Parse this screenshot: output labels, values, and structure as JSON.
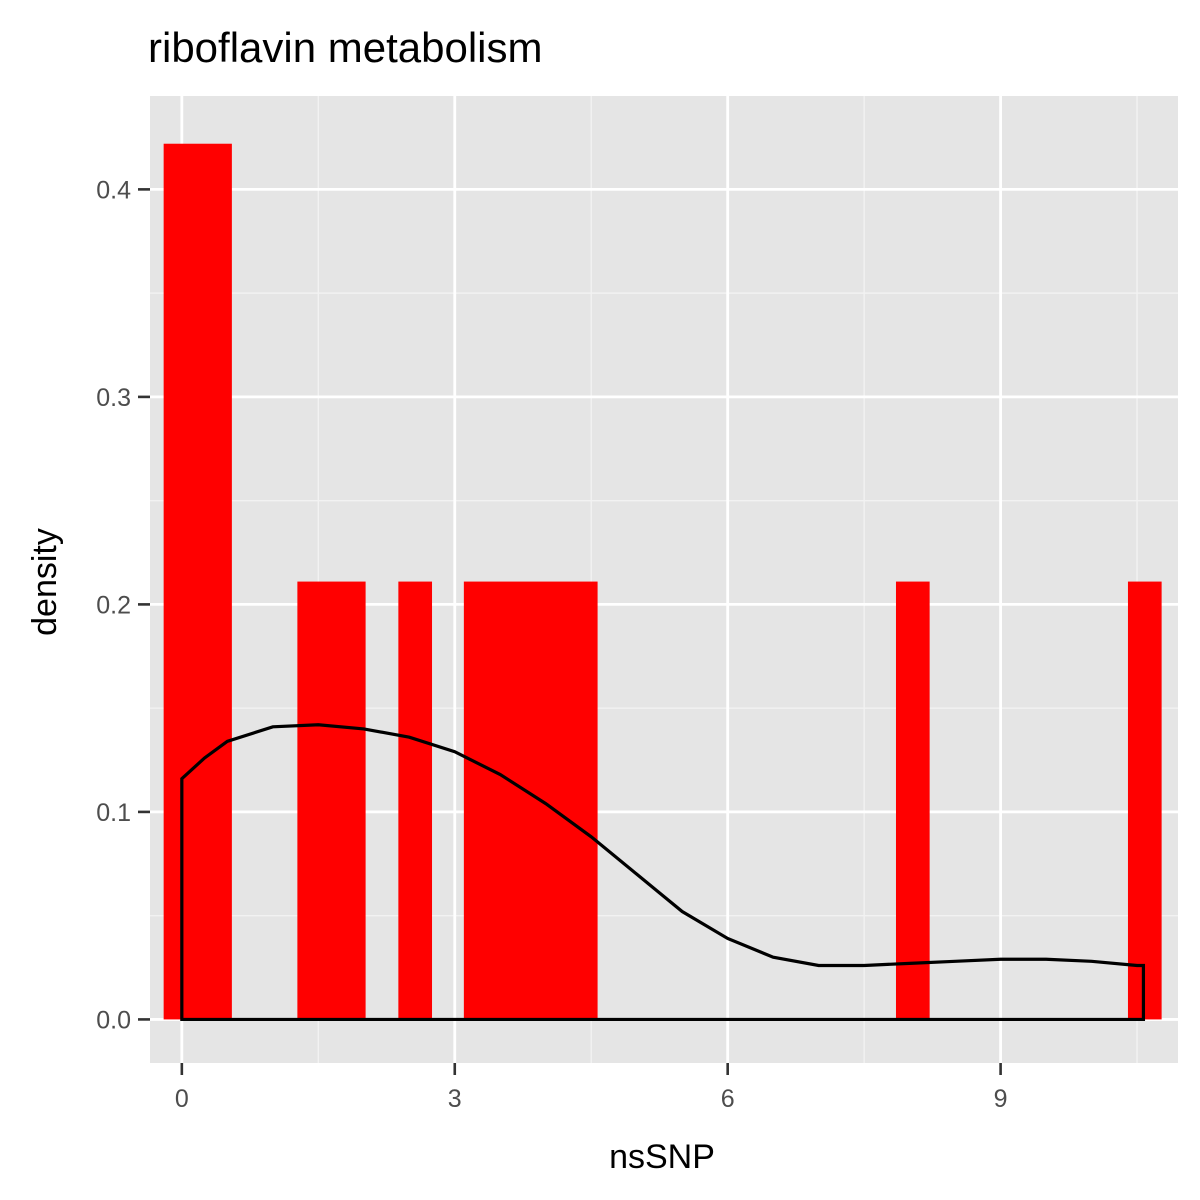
{
  "chart_data": {
    "type": "bar",
    "subtype": "histogram-with-density",
    "title": "riboflavin metabolism",
    "xlabel": "nsSNP",
    "ylabel": "density",
    "xlim": [
      -0.35,
      10.95
    ],
    "ylim": [
      -0.021,
      0.445
    ],
    "x_ticks": [
      0,
      3,
      6,
      9
    ],
    "y_ticks": [
      0.0,
      0.1,
      0.2,
      0.3,
      0.4
    ],
    "x_tick_labels": [
      "0",
      "3",
      "6",
      "9"
    ],
    "y_tick_labels": [
      "0.0",
      "0.1",
      "0.2",
      "0.3",
      "0.4"
    ],
    "grid": true,
    "panel_background": "#e5e5e5",
    "bar_color": "#ff0000",
    "density_line_color": "#000000",
    "bars": [
      {
        "x0": -0.2,
        "x1": 0.55,
        "density": 0.422
      },
      {
        "x0": 1.27,
        "x1": 2.02,
        "density": 0.211
      },
      {
        "x0": 2.38,
        "x1": 2.75,
        "density": 0.211
      },
      {
        "x0": 3.1,
        "x1": 4.57,
        "density": 0.211
      },
      {
        "x0": 7.85,
        "x1": 8.22,
        "density": 0.211
      },
      {
        "x0": 10.4,
        "x1": 10.77,
        "density": 0.211
      }
    ],
    "density_curve": {
      "x": [
        0,
        0.25,
        0.5,
        1.0,
        1.5,
        2.0,
        2.5,
        3.0,
        3.5,
        4.0,
        4.5,
        5.0,
        5.5,
        6.0,
        6.5,
        7.0,
        7.5,
        8.0,
        8.5,
        9.0,
        9.5,
        10.0,
        10.5,
        10.57
      ],
      "y": [
        0.116,
        0.126,
        0.134,
        0.141,
        0.142,
        0.14,
        0.136,
        0.129,
        0.118,
        0.104,
        0.088,
        0.07,
        0.052,
        0.039,
        0.03,
        0.026,
        0.026,
        0.027,
        0.028,
        0.029,
        0.029,
        0.028,
        0.026,
        0.026
      ]
    }
  }
}
